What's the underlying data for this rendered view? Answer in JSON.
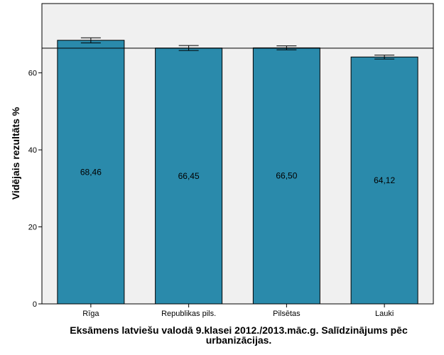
{
  "chart_data": {
    "type": "bar",
    "title": "",
    "xlabel_lines": [
      "Eksāmens latviešu valodā 9.klasei 2012./2013.māc.g. Salīdzinājums pēc",
      "urbanizācijas."
    ],
    "ylabel": "Vidējais rezultāts %",
    "categories": [
      "Rīga",
      "Republikas pils.",
      "Pilsētas",
      "Lauki"
    ],
    "values": [
      68.46,
      66.45,
      66.5,
      64.12
    ],
    "value_labels": [
      "68,46",
      "66,45",
      "66,50",
      "64,12"
    ],
    "error_bars": [
      {
        "low": 67.8,
        "high": 69.1
      },
      {
        "low": 65.8,
        "high": 67.1
      },
      {
        "low": 66.0,
        "high": 67.0
      },
      {
        "low": 63.6,
        "high": 64.6
      }
    ],
    "reference_line": 66.4,
    "ylim": [
      0,
      78
    ],
    "yticks": [
      0,
      20,
      40,
      60
    ],
    "grid": false,
    "colors": {
      "bar": "#2a8aab",
      "plot_background": "#f0f0f0",
      "outline": "#000000"
    }
  }
}
